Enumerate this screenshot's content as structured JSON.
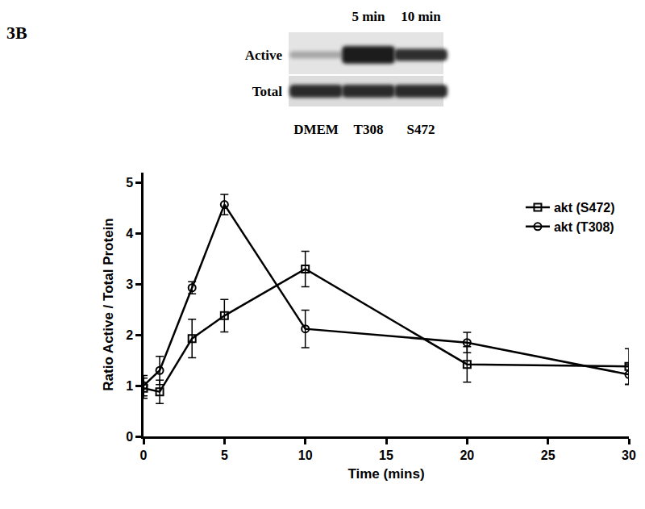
{
  "panel_label": "3B",
  "blot": {
    "time_labels": [
      "5 min",
      "10 min"
    ],
    "row_labels": [
      "Active",
      "Total"
    ],
    "lane_labels": [
      "DMEM",
      "T308",
      "S472"
    ]
  },
  "chart_data": {
    "type": "line",
    "x_label": "Time (mins)",
    "y_label": "Ratio Active / Total Protein",
    "x": [
      0,
      1,
      3,
      5,
      10,
      20,
      30
    ],
    "series": [
      {
        "name": "akt (S472)",
        "color": "#000000",
        "marker": "square",
        "line_style": "solid",
        "values": [
          0.95,
          0.88,
          1.93,
          2.38,
          3.3,
          1.42,
          1.38
        ],
        "error": [
          0.2,
          0.23,
          0.38,
          0.32,
          0.35,
          0.35,
          0.35
        ]
      },
      {
        "name": "akt (T308)",
        "color": "#000000",
        "marker": "circle",
        "line_style": "solid",
        "values": [
          1.0,
          1.3,
          2.93,
          4.57,
          2.12,
          1.85,
          1.22
        ],
        "error": [
          0.2,
          0.28,
          0.12,
          0.2,
          0.37,
          0.2,
          0.2
        ]
      }
    ],
    "xlim": [
      0,
      30
    ],
    "xticks": [
      0,
      5,
      10,
      15,
      20,
      25,
      30
    ],
    "ylim": [
      0,
      5.2
    ],
    "yticks": [
      0,
      1,
      2,
      3,
      4,
      5
    ],
    "grid": false,
    "legend": "top right"
  }
}
